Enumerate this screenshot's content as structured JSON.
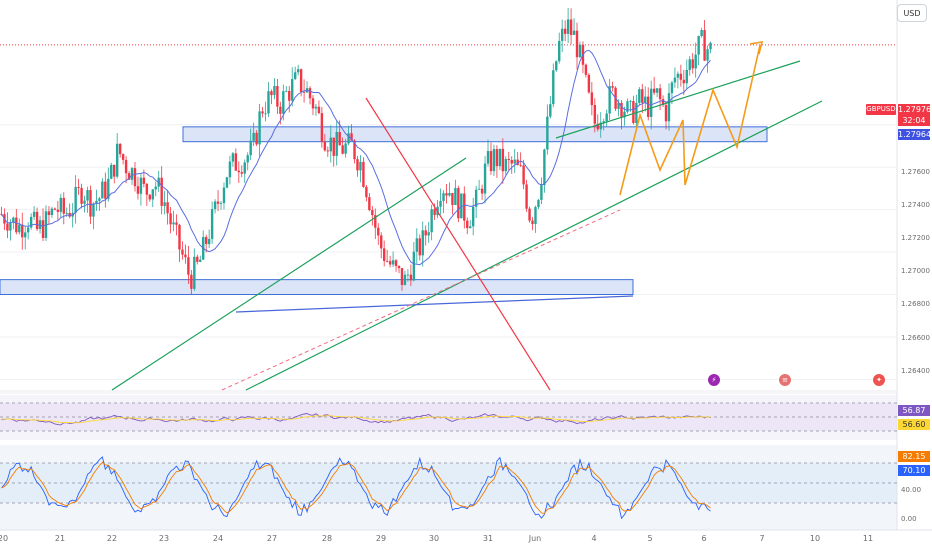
{
  "currency_button": "USD",
  "symbol": "GBPUSD",
  "price_badges": {
    "last": "1.27976",
    "countdown": "32:04",
    "prev": "1.27964"
  },
  "price_axis": [
    "1.27600",
    "1.27400",
    "1.27200",
    "1.27000",
    "1.26800",
    "1.26600",
    "1.26400"
  ],
  "rsi_badges": {
    "rsi": "56.87",
    "signal": "56.60"
  },
  "stoch_badges": {
    "k": "82.15",
    "d": "70.10"
  },
  "stoch_axis": [
    "40.00",
    "0.00"
  ],
  "x_axis": [
    "20",
    "21",
    "22",
    "23",
    "24",
    "27",
    "28",
    "29",
    "30",
    "31",
    "Jun",
    "4",
    "5",
    "6",
    "7",
    "10",
    "11"
  ],
  "colors": {
    "up": "#26a69a",
    "down": "#f23645",
    "ma": "#5b6ee1",
    "zone": "#3f6fd8",
    "trend_green": "#1aa05a",
    "trend_red": "#f23645",
    "path_orange": "#f59b1a"
  },
  "chart_data": {
    "type": "candlestick",
    "symbol": "GBPUSD",
    "price_range": [
      1.2635,
      1.2815
    ],
    "last_price": 1.27976,
    "zones": [
      {
        "from": 1.2752,
        "to": 1.2759
      },
      {
        "from": 1.268,
        "to": 1.2687
      }
    ],
    "close_path": [
      1.2718,
      1.2715,
      1.2712,
      1.2716,
      1.271,
      1.2714,
      1.2721,
      1.2718,
      1.2722,
      1.273,
      1.2723,
      1.2726,
      1.2733,
      1.2748,
      1.274,
      1.2736,
      1.2728,
      1.2733,
      1.2726,
      1.2712,
      1.27,
      1.2688,
      1.2694,
      1.2708,
      1.2722,
      1.2737,
      1.2742,
      1.2744,
      1.2748,
      1.2768,
      1.2773,
      1.277,
      1.2776,
      1.2781,
      1.2776,
      1.2768,
      1.2755,
      1.275,
      1.2749,
      1.275,
      1.2742,
      1.2725,
      1.2705,
      1.2696,
      1.269,
      1.2686,
      1.2698,
      1.2705,
      1.272,
      1.2732,
      1.2729,
      1.2722,
      1.2716,
      1.2724,
      1.274,
      1.2745,
      1.274,
      1.2741,
      1.2736,
      1.2715,
      1.2732,
      1.2765,
      1.2796,
      1.2807,
      1.28,
      1.278,
      1.276,
      1.2768,
      1.2774,
      1.2771,
      1.2764,
      1.2771,
      1.2769,
      1.2774,
      1.2766,
      1.2782,
      1.2785,
      1.2791,
      1.2798,
      1.2795
    ],
    "rsi": {
      "value": 56.87,
      "signal": 56.6,
      "levels": [
        70,
        50,
        30
      ]
    },
    "stochastic": {
      "k": 82.15,
      "d": 70.1,
      "levels": [
        80,
        50,
        20
      ]
    },
    "x_ticks": [
      "20",
      "21",
      "22",
      "23",
      "24",
      "27",
      "28",
      "29",
      "30",
      "31",
      "Jun",
      "4",
      "5",
      "6",
      "7",
      "10",
      "11"
    ]
  }
}
